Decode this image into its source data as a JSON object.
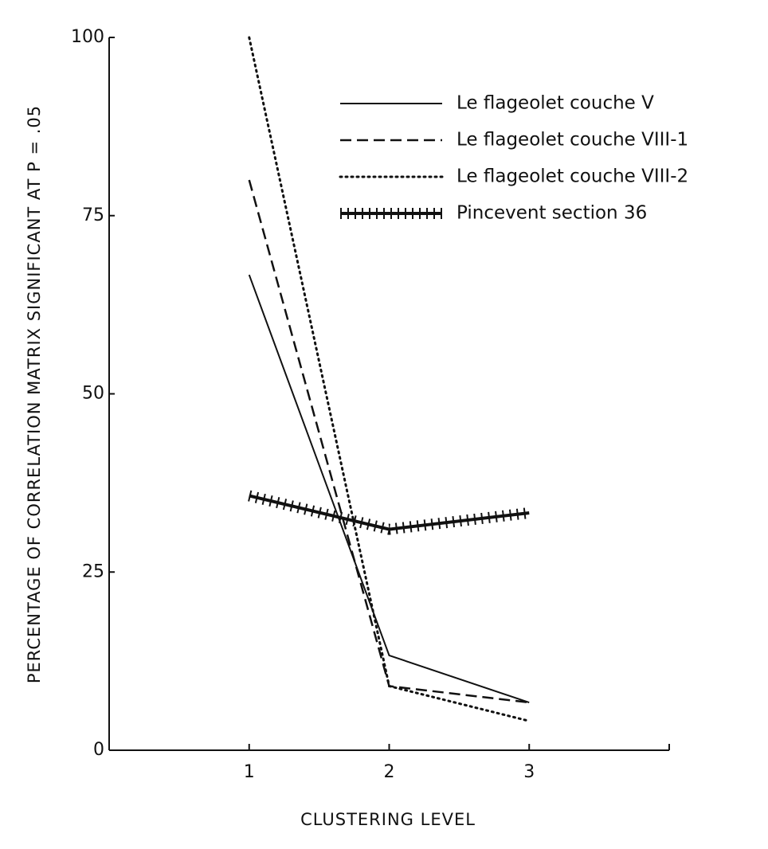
{
  "chart_data": {
    "type": "line",
    "x_label": "CLUSTERING LEVEL",
    "y_label": "PERCENTAGE OF CORRELATION MATRIX SIGNIFICANT AT P = .05",
    "x": [
      1,
      2,
      3
    ],
    "xlim": [
      0,
      4
    ],
    "xticks": [
      1,
      2,
      3
    ],
    "ylim": [
      0,
      100
    ],
    "yticks": [
      0,
      25,
      50,
      75,
      100
    ],
    "series": [
      {
        "name": "Le flageolet couche V",
        "color": "#111111",
        "style": "solid",
        "values": [
          66.7,
          13.3,
          6.7
        ]
      },
      {
        "name": "Le flageolet couche VIII-1",
        "color": "#111111",
        "style": "dashed",
        "values": [
          80,
          9,
          6.7
        ]
      },
      {
        "name": "Le flageolet couche VIII-2",
        "color": "#111111",
        "style": "dotted",
        "values": [
          100,
          9,
          4.1
        ]
      },
      {
        "name": "Pincevent section 36",
        "color": "#111111",
        "style": "hatched",
        "values": [
          35.7,
          31,
          33.3
        ]
      }
    ]
  }
}
